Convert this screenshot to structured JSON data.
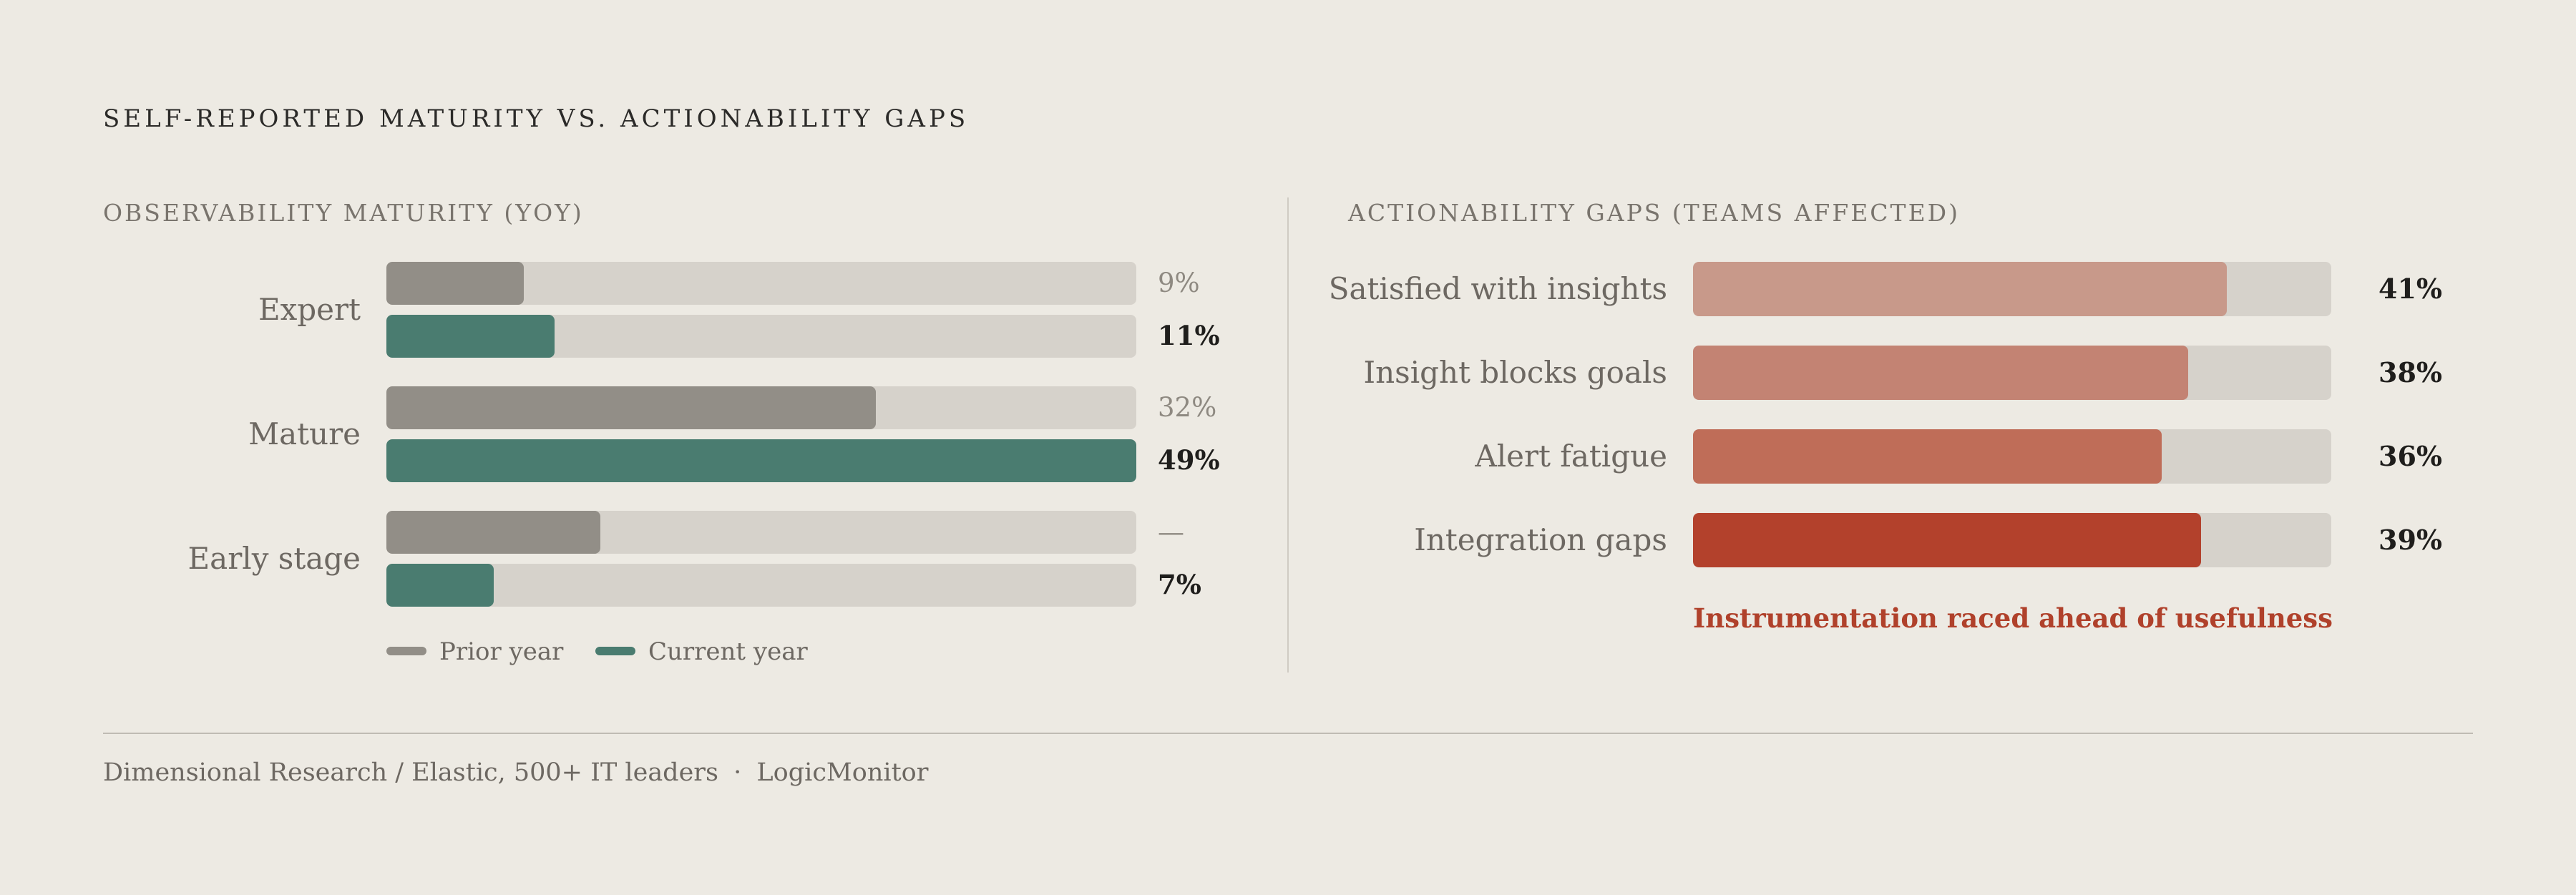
{
  "title": "SELF-REPORTED MATURITY VS. ACTIONABILITY GAPS",
  "colors": {
    "background": "#edeae3",
    "track": "#d6d2cb",
    "prior_year": "#928e87",
    "current_year": "#4a7c70",
    "gap_shades": [
      "#c8998a",
      "#c38373",
      "#bf6d58",
      "#b3412c"
    ],
    "annotation": "#b0412b"
  },
  "chart_data": [
    {
      "type": "bar",
      "orientation": "horizontal",
      "title": "OBSERVABILITY MATURITY (YOY)",
      "categories": [
        "Expert",
        "Mature",
        "Early stage"
      ],
      "series": [
        {
          "name": "Prior year",
          "values": [
            9,
            32,
            14
          ],
          "value_labels": [
            "9%",
            "32%",
            "—"
          ]
        },
        {
          "name": "Current year",
          "values": [
            11,
            49,
            7
          ],
          "value_labels": [
            "11%",
            "49%",
            "7%"
          ]
        }
      ],
      "xlim": [
        0,
        49
      ],
      "legend": {
        "position": "bottom-left",
        "labels": [
          "Prior year",
          "Current year"
        ]
      }
    },
    {
      "type": "bar",
      "orientation": "horizontal",
      "title": "ACTIONABILITY GAPS (TEAMS AFFECTED)",
      "categories": [
        "Satisfied with insights",
        "Insight blocks goals",
        "Alert fatigue",
        "Integration gaps"
      ],
      "values": [
        41,
        38,
        36,
        39
      ],
      "value_labels": [
        "41%",
        "38%",
        "36%",
        "39%"
      ],
      "xlim": [
        0,
        49
      ],
      "annotation": "Instrumentation raced ahead of usefulness"
    }
  ],
  "footer": {
    "source": "Dimensional Research / Elastic, 500+ IT leaders",
    "separator": "·",
    "brand": "LogicMonitor"
  }
}
